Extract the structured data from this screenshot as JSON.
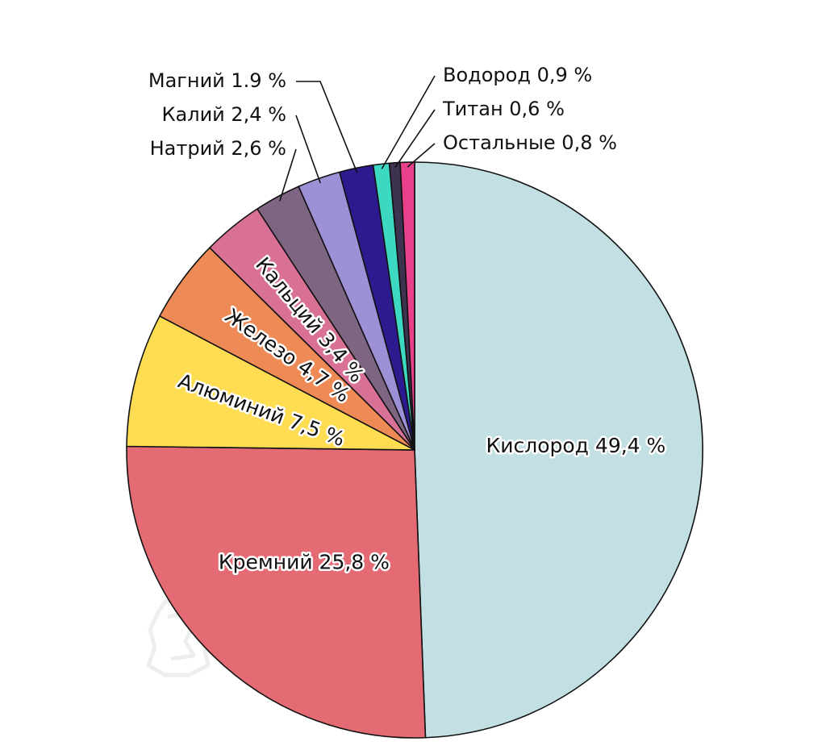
{
  "chart_data": {
    "type": "pie",
    "unit": "%",
    "slices": [
      {
        "name": "Кислород",
        "value": 49.4,
        "label": "Кислород 49,4 %",
        "color": "#c2e0e4",
        "placement": "inside"
      },
      {
        "name": "Кремний",
        "value": 25.8,
        "label": "Кремний 25,8 %",
        "color": "#e46b73",
        "placement": "inside"
      },
      {
        "name": "Алюминий",
        "value": 7.5,
        "label": "Алюминий 7,5 %",
        "color": "#ffdd52",
        "placement": "inside"
      },
      {
        "name": "Железо",
        "value": 4.7,
        "label": "Железо 4,7 %",
        "color": "#ee8a55",
        "placement": "inside"
      },
      {
        "name": "Кальций",
        "value": 3.4,
        "label": "Кальций 3,4 %",
        "color": "#d87195",
        "placement": "inside"
      },
      {
        "name": "Натрий",
        "value": 2.6,
        "label": "Натрий 2,6 %",
        "color": "#7e6582",
        "placement": "outside-left"
      },
      {
        "name": "Калий",
        "value": 2.4,
        "label": "Калий 2,4 %",
        "color": "#9d90d6",
        "placement": "outside-left"
      },
      {
        "name": "Магний",
        "value": 1.9,
        "label": "Магний 1.9 %",
        "color": "#2d1a8f",
        "placement": "outside-left"
      },
      {
        "name": "Водород",
        "value": 0.9,
        "label": "Водород 0,9 %",
        "color": "#3dd8c2",
        "placement": "outside-right"
      },
      {
        "name": "Титан",
        "value": 0.6,
        "label": "Титан 0,6 %",
        "color": "#3d3350",
        "placement": "outside-right"
      },
      {
        "name": "Остальные",
        "value": 0.8,
        "label": "Остальные 0,8 %",
        "color": "#e8408a",
        "placement": "outside-right"
      }
    ]
  }
}
